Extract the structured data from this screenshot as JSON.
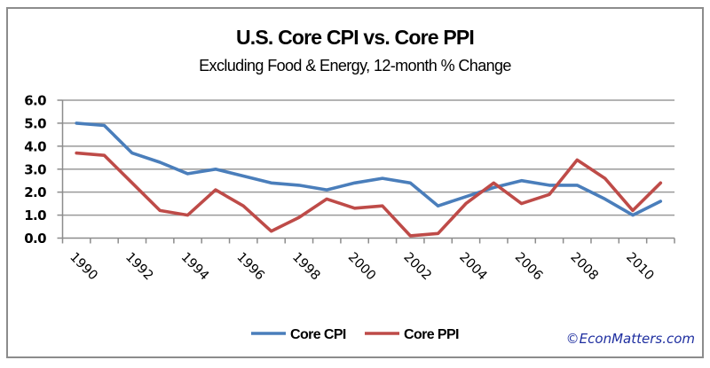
{
  "chart_data": {
    "type": "line",
    "title": "U.S. Core CPI vs. Core PPI",
    "subtitle": "Excluding Food & Energy, 12-month % Change",
    "xlabel": "",
    "ylabel": "",
    "x": [
      1990,
      1991,
      1992,
      1993,
      1994,
      1995,
      1996,
      1997,
      1998,
      1999,
      2000,
      2001,
      2002,
      2003,
      2004,
      2005,
      2006,
      2007,
      2008,
      2009,
      2010,
      2011
    ],
    "x_tick_labels": [
      "1990",
      "1992",
      "1994",
      "1996",
      "1998",
      "2000",
      "2002",
      "2004",
      "2006",
      "2008",
      "2010"
    ],
    "y_tick_labels": [
      "0.0",
      "1.0",
      "2.0",
      "3.0",
      "4.0",
      "5.0",
      "6.0"
    ],
    "ylim": [
      0,
      6
    ],
    "y_step": 1,
    "grid": true,
    "series": [
      {
        "name": "Core CPI",
        "color": "#4a7ebb",
        "values": [
          5.0,
          4.9,
          3.7,
          3.3,
          2.8,
          3.0,
          2.7,
          2.4,
          2.3,
          2.1,
          2.4,
          2.6,
          2.4,
          1.4,
          1.8,
          2.2,
          2.5,
          2.3,
          2.3,
          1.7,
          1.0,
          1.6
        ]
      },
      {
        "name": "Core PPI",
        "color": "#be4b48",
        "values": [
          3.7,
          3.6,
          2.4,
          1.2,
          1.0,
          2.1,
          1.4,
          0.3,
          0.9,
          1.7,
          1.3,
          1.4,
          0.1,
          0.2,
          1.5,
          2.4,
          1.5,
          1.9,
          3.4,
          2.6,
          1.2,
          2.4
        ]
      }
    ],
    "legend": {
      "placement": "bottom-center",
      "entries": [
        "Core CPI",
        "Core PPI"
      ]
    },
    "annotations": [
      {
        "text": "©EconMatters.com",
        "placement": "bottom-right"
      }
    ]
  },
  "copyright": "©EconMatters.com"
}
